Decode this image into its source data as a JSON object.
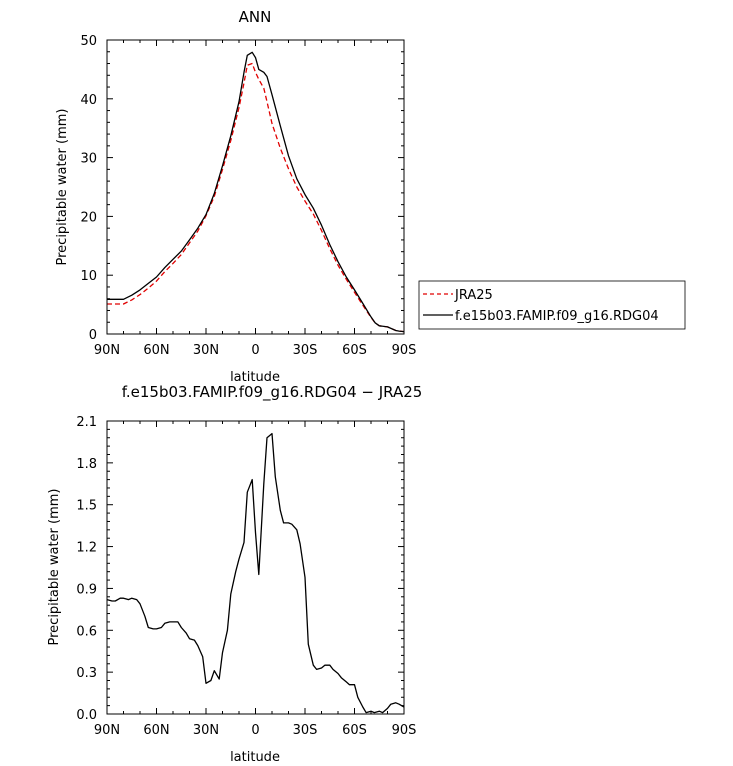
{
  "chart_data": [
    {
      "type": "line",
      "title": "ANN",
      "xlabel": "latitude",
      "ylabel": "Precipitable water (mm)",
      "x_reversed_latitude": true,
      "xlim": [
        90,
        -90
      ],
      "ylim": [
        0,
        50
      ],
      "x_ticks": [
        90,
        60,
        30,
        0,
        -30,
        -60,
        -90
      ],
      "x_tick_labels": [
        "90N",
        "60N",
        "30N",
        "0",
        "30S",
        "60S",
        "90S"
      ],
      "y_ticks": [
        0,
        10,
        20,
        30,
        40,
        50
      ],
      "y_tick_labels": [
        "0",
        "10",
        "20",
        "30",
        "40",
        "50"
      ],
      "legend": "right",
      "series": [
        {
          "name": "JRA25",
          "color": "#e00000",
          "dash": true,
          "x": [
            90,
            85,
            80,
            75,
            70,
            65,
            60,
            55,
            50,
            45,
            40,
            35,
            30,
            25,
            20,
            15,
            10,
            7,
            5,
            2,
            0,
            -2,
            -5,
            -7,
            -10,
            -15,
            -20,
            -25,
            -30,
            -35,
            -40,
            -45,
            -50,
            -55,
            -60,
            -65,
            -70,
            -72.5,
            -75,
            -80,
            -85,
            -87,
            -90
          ],
          "y": [
            5.1,
            5.1,
            5.1,
            5.8,
            6.7,
            7.8,
            9.0,
            10.6,
            12.0,
            13.5,
            15.5,
            17.5,
            20.1,
            23.4,
            28.0,
            32.9,
            38.5,
            42.7,
            45.7,
            46.0,
            44.5,
            43.3,
            41.8,
            39.5,
            35.8,
            31.6,
            28.1,
            25.0,
            22.6,
            20.4,
            17.6,
            14.5,
            11.7,
            9.3,
            7.1,
            4.9,
            2.8,
            1.9,
            1.4,
            1.2,
            0.6,
            0.5,
            0.4
          ]
        },
        {
          "name": "f.e15b03.FAMIP.f09_g16.RDG04",
          "color": "#000000",
          "dash": false,
          "x": [
            90,
            85,
            80,
            75,
            70,
            65,
            60,
            55,
            50,
            45,
            40,
            35,
            30,
            25,
            20,
            15,
            10,
            7,
            5,
            2,
            0,
            -2,
            -5,
            -7,
            -10,
            -15,
            -20,
            -25,
            -30,
            -35,
            -40,
            -45,
            -50,
            -55,
            -60,
            -65,
            -70,
            -72.5,
            -75,
            -80,
            -85,
            -87,
            -90
          ],
          "y": [
            5.9,
            5.9,
            5.9,
            6.6,
            7.5,
            8.6,
            9.7,
            11.3,
            12.7,
            14.1,
            16.0,
            18.0,
            20.3,
            23.9,
            28.6,
            33.7,
            39.5,
            44.5,
            47.4,
            47.9,
            47.0,
            45.0,
            44.5,
            43.8,
            40.7,
            35.4,
            30.3,
            26.4,
            23.7,
            21.4,
            18.5,
            15.2,
            12.3,
            9.7,
            7.5,
            5.2,
            2.9,
            1.9,
            1.4,
            1.2,
            0.6,
            0.5,
            0.4
          ]
        }
      ]
    },
    {
      "type": "line",
      "title": "f.e15b03.FAMIP.f09_g16.RDG04 − JRA25",
      "xlabel": "latitude",
      "ylabel": "Precipitable water (mm)",
      "x_reversed_latitude": true,
      "xlim": [
        90,
        -90
      ],
      "ylim": [
        0,
        2.1
      ],
      "x_ticks": [
        90,
        60,
        30,
        0,
        -30,
        -60,
        -90
      ],
      "x_tick_labels": [
        "90N",
        "60N",
        "30N",
        "0",
        "30S",
        "60S",
        "90S"
      ],
      "y_ticks": [
        0,
        0.3,
        0.6,
        0.9,
        1.2,
        1.5,
        1.8,
        2.1
      ],
      "y_tick_labels": [
        "0.0",
        "0.3",
        "0.6",
        "0.9",
        "1.2",
        "1.5",
        "1.8",
        "2.1"
      ],
      "series": [
        {
          "color": "#000000",
          "dash": false,
          "x": [
            90,
            87,
            85,
            82,
            80,
            77,
            75,
            72,
            70,
            67,
            65,
            62,
            60,
            57,
            55,
            52,
            50,
            47,
            45,
            42,
            40,
            37,
            35,
            32,
            30,
            27,
            25,
            22,
            20,
            17,
            15,
            12,
            10,
            7,
            5,
            2,
            0,
            -2,
            -5,
            -7,
            -10,
            -12,
            -15,
            -17,
            -20,
            -22,
            -25,
            -27,
            -30,
            -32,
            -35,
            -37,
            -40,
            -42,
            -45,
            -47,
            -50,
            -52,
            -55,
            -57,
            -60,
            -62,
            -65,
            -67,
            -70,
            -72,
            -75,
            -77,
            -80,
            -82,
            -85,
            -87,
            -90
          ],
          "y": [
            0.82,
            0.81,
            0.81,
            0.83,
            0.83,
            0.82,
            0.83,
            0.82,
            0.79,
            0.7,
            0.62,
            0.61,
            0.61,
            0.62,
            0.65,
            0.66,
            0.66,
            0.66,
            0.62,
            0.58,
            0.54,
            0.53,
            0.49,
            0.41,
            0.22,
            0.24,
            0.31,
            0.25,
            0.44,
            0.6,
            0.86,
            1.02,
            1.11,
            1.23,
            1.59,
            1.68,
            1.3,
            1.0,
            1.65,
            1.98,
            2.01,
            1.7,
            1.46,
            1.37,
            1.37,
            1.36,
            1.32,
            1.22,
            0.98,
            0.5,
            0.35,
            0.32,
            0.33,
            0.35,
            0.35,
            0.32,
            0.29,
            0.26,
            0.23,
            0.21,
            0.21,
            0.12,
            0.05,
            0.01,
            0.02,
            0.01,
            0.02,
            0.01,
            0.04,
            0.07,
            0.08,
            0.07,
            0.05
          ]
        }
      ]
    }
  ]
}
